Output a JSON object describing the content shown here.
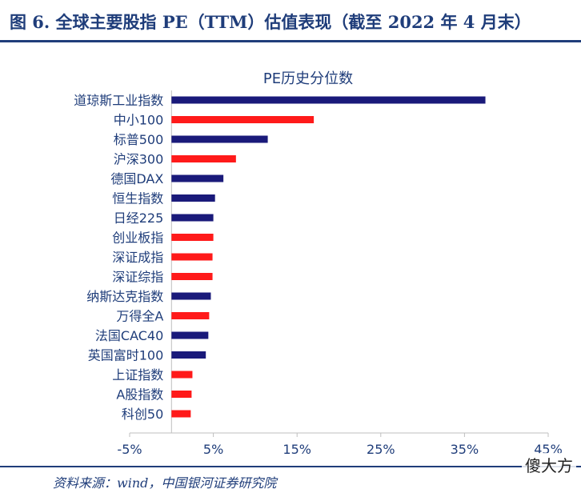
{
  "figure_title": "图 6. 全球主要股指 PE（TTM）估值表现（截至 2022 年 4 月末）",
  "source_note": "资料来源：wind，中国银河证券研究院",
  "watermark": "傻大方",
  "colors": {
    "navy": "#1a1a7a",
    "red": "#ff1a1a",
    "title": "#1f3d7a"
  },
  "chart_data": {
    "type": "bar",
    "orientation": "horizontal",
    "title": "PE历史分位数",
    "xlabel": "",
    "ylabel": "",
    "xlim": [
      -5,
      45
    ],
    "xticks": [
      "-5%",
      "5%",
      "15%",
      "25%",
      "35%",
      "45%"
    ],
    "xtick_values": [
      -5,
      5,
      15,
      25,
      35,
      45
    ],
    "grid": false,
    "legend": "none",
    "categories": [
      "道琼斯工业指数",
      "中小100",
      "标普500",
      "沪深300",
      "德国DAX",
      "恒生指数",
      "日经225",
      "创业板指",
      "深证成指",
      "深证综指",
      "纳斯达克指数",
      "万得全A",
      "法国CAC40",
      "英国富时100",
      "上证指数",
      "A股指数",
      "科创50"
    ],
    "values": [
      37.5,
      17.0,
      11.5,
      7.7,
      6.2,
      5.2,
      5.0,
      5.0,
      4.9,
      4.9,
      4.7,
      4.5,
      4.4,
      4.1,
      2.5,
      2.4,
      2.3
    ],
    "bar_colors": [
      "navy",
      "red",
      "navy",
      "red",
      "navy",
      "navy",
      "navy",
      "red",
      "red",
      "red",
      "navy",
      "red",
      "navy",
      "navy",
      "red",
      "red",
      "red"
    ]
  }
}
